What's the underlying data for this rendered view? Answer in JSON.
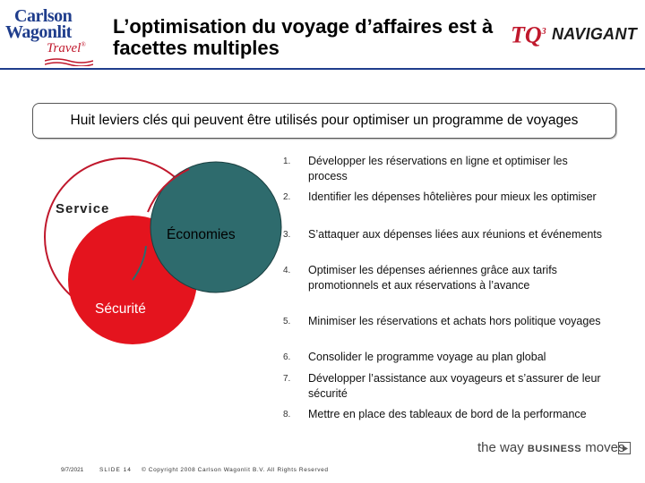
{
  "header": {
    "logo_left": {
      "line1": "Carlson",
      "line2": "Wagonlit",
      "line3": "Travel",
      "reg": "®"
    },
    "title": "L’optimisation du voyage d’affaires est à facettes multiples",
    "logo_right": {
      "tq": "TQ",
      "tq_sup": "3",
      "navigant": "NAVIGANT"
    }
  },
  "summary_box": "Huit leviers clés qui peuvent être utilisés pour optimiser un programme de voyages",
  "venn": {
    "service": "Service",
    "economies": "Économies",
    "securite": "Sécurité",
    "colors": {
      "service_fill": "#ffffff",
      "service_stroke": "#c0182c",
      "economies_fill": "#2e6b6d",
      "securite_fill": "#e4141e"
    }
  },
  "levers": [
    {
      "num": "1.",
      "text": "Développer les réservations en ligne et optimiser les process"
    },
    {
      "num": "2.",
      "text": "Identifier les dépenses hôtelières pour mieux les optimiser"
    },
    {
      "num": "3.",
      "text": "S’attaquer aux dépenses liées aux réunions et événements"
    },
    {
      "num": "4.",
      "text": "Optimiser les dépenses aériennes grâce aux tarifs promotionnels et aux réservations à l’avance"
    },
    {
      "num": "5.",
      "text": "Minimiser les réservations et achats hors politique voyages"
    },
    {
      "num": "6.",
      "text": "Consolider le programme voyage au plan global"
    },
    {
      "num": "7.",
      "text": "Développer l’assistance aux voyageurs et s’assurer de leur sécurité"
    },
    {
      "num": "8.",
      "text": "Mettre en place des tableaux de bord de la performance"
    }
  ],
  "footer": {
    "date": "9/7/2021",
    "slide": "SLIDE 14",
    "copyright": "© Copyright 2008 Carlson Wagonlit B.V. All Rights Reserved",
    "tagline_pre": "the way ",
    "tagline_bold": "BUSINESS",
    "tagline_post": " moves"
  }
}
